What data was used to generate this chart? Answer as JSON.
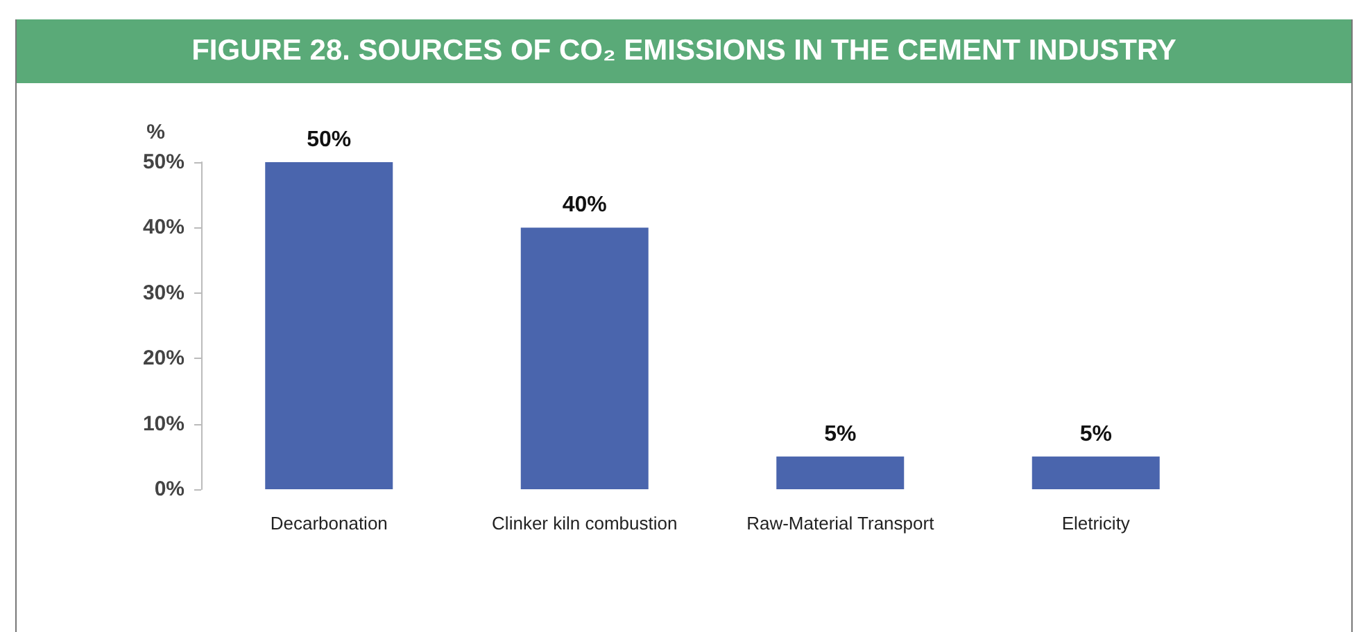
{
  "chart_data": {
    "type": "bar",
    "title": "FIGURE 28. SOURCES OF CO₂ EMISSIONS IN THE CEMENT INDUSTRY",
    "ylabel": "%",
    "categories": [
      "Decarbonation",
      "Clinker kiln combustion",
      "Raw-Material Transport",
      "Eletricity"
    ],
    "values": [
      50,
      40,
      5,
      5
    ],
    "value_labels": [
      "50%",
      "40%",
      "5%",
      "5%"
    ],
    "color": "#4a65ad",
    "ylim": [
      0,
      50
    ],
    "yticks": [
      {
        "value": 0,
        "label": "0%"
      },
      {
        "value": 10,
        "label": "10%"
      },
      {
        "value": 20,
        "label": "20%"
      },
      {
        "value": 30,
        "label": "30%"
      },
      {
        "value": 40,
        "label": "40%"
      },
      {
        "value": 50,
        "label": "50%"
      }
    ],
    "grid": false
  }
}
